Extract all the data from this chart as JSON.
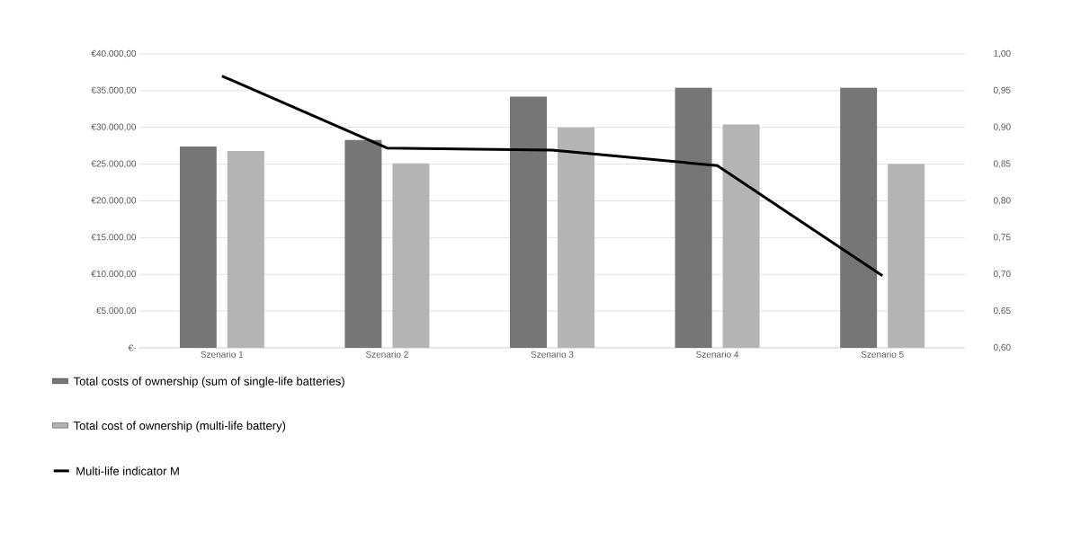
{
  "chart_data": {
    "type": "bar",
    "categories": [
      "Szenario 1",
      "Szenario 2",
      "Szenario 3",
      "Szenario 4",
      "Szenario 5"
    ],
    "series": [
      {
        "name": "Total costs of ownership (sum of single-life batteries)",
        "color": "#767676",
        "values": [
          27400,
          28300,
          34200,
          35400,
          35400
        ]
      },
      {
        "name": "Total cost of ownership (multi-life battery)",
        "color": "#b4b4b4",
        "values": [
          26800,
          25100,
          30000,
          30400,
          25000
        ]
      },
      {
        "name": "Multi-life indicator M",
        "type": "line",
        "axis": "y2",
        "color": "#000000",
        "values": [
          0.97,
          0.872,
          0.869,
          0.848,
          0.698
        ]
      }
    ],
    "ylim": [
      0,
      40000
    ],
    "yticks": [
      {
        "value": 0,
        "label": "€-"
      },
      {
        "value": 5000,
        "label": "€5.000,00"
      },
      {
        "value": 10000,
        "label": "€10.000,00"
      },
      {
        "value": 15000,
        "label": "€15.000,00"
      },
      {
        "value": 20000,
        "label": "€20.000,00"
      },
      {
        "value": 25000,
        "label": "€25.000,00"
      },
      {
        "value": 30000,
        "label": "€30.000,00"
      },
      {
        "value": 35000,
        "label": "€35.000,00"
      },
      {
        "value": 40000,
        "label": "€40.000,00"
      }
    ],
    "y2lim": [
      0.6,
      1.0
    ],
    "y2ticks": [
      {
        "value": 0.6,
        "label": "0,60"
      },
      {
        "value": 0.65,
        "label": "0,65"
      },
      {
        "value": 0.7,
        "label": "0,70"
      },
      {
        "value": 0.75,
        "label": "0,75"
      },
      {
        "value": 0.8,
        "label": "0,80"
      },
      {
        "value": 0.85,
        "label": "0,85"
      },
      {
        "value": 0.9,
        "label": "0,90"
      },
      {
        "value": 0.95,
        "label": "0,95"
      },
      {
        "value": 1.0,
        "label": "1,00"
      }
    ],
    "grid": "y",
    "legend": "bottom",
    "marker": "none",
    "line_style": "solid"
  }
}
